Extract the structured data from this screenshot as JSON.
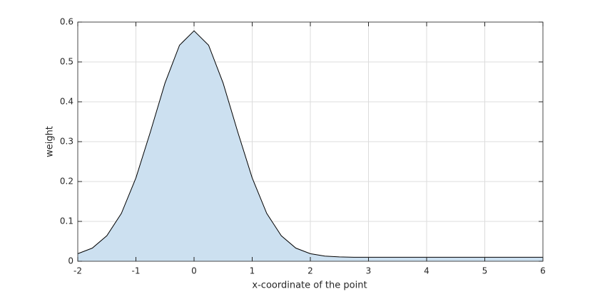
{
  "chart_data": {
    "type": "area",
    "xlabel": "x-coordinate of the point",
    "ylabel": "weight",
    "x": [
      -2,
      -1.75,
      -1.5,
      -1.25,
      -1,
      -0.75,
      -0.5,
      -0.25,
      0,
      0.25,
      0.5,
      0.75,
      1,
      1.25,
      1.5,
      1.75,
      2,
      2.25,
      2.5,
      2.75,
      3,
      3.5,
      4,
      4.5,
      5,
      5.5,
      6
    ],
    "values": [
      0.019,
      0.033,
      0.064,
      0.12,
      0.209,
      0.325,
      0.447,
      0.542,
      0.578,
      0.542,
      0.447,
      0.325,
      0.209,
      0.12,
      0.064,
      0.033,
      0.019,
      0.013,
      0.011,
      0.01,
      0.01,
      0.01,
      0.01,
      0.01,
      0.01,
      0.01,
      0.01
    ],
    "color": "#cce0f0",
    "line_color": "#000000",
    "xlim": [
      -2,
      6
    ],
    "ylim": [
      0,
      0.6
    ],
    "xticks": [
      -2,
      -1,
      0,
      1,
      2,
      3,
      4,
      5,
      6
    ],
    "yticks": [
      0,
      0.1,
      0.2,
      0.3,
      0.4,
      0.5,
      0.6
    ],
    "grid": true
  }
}
